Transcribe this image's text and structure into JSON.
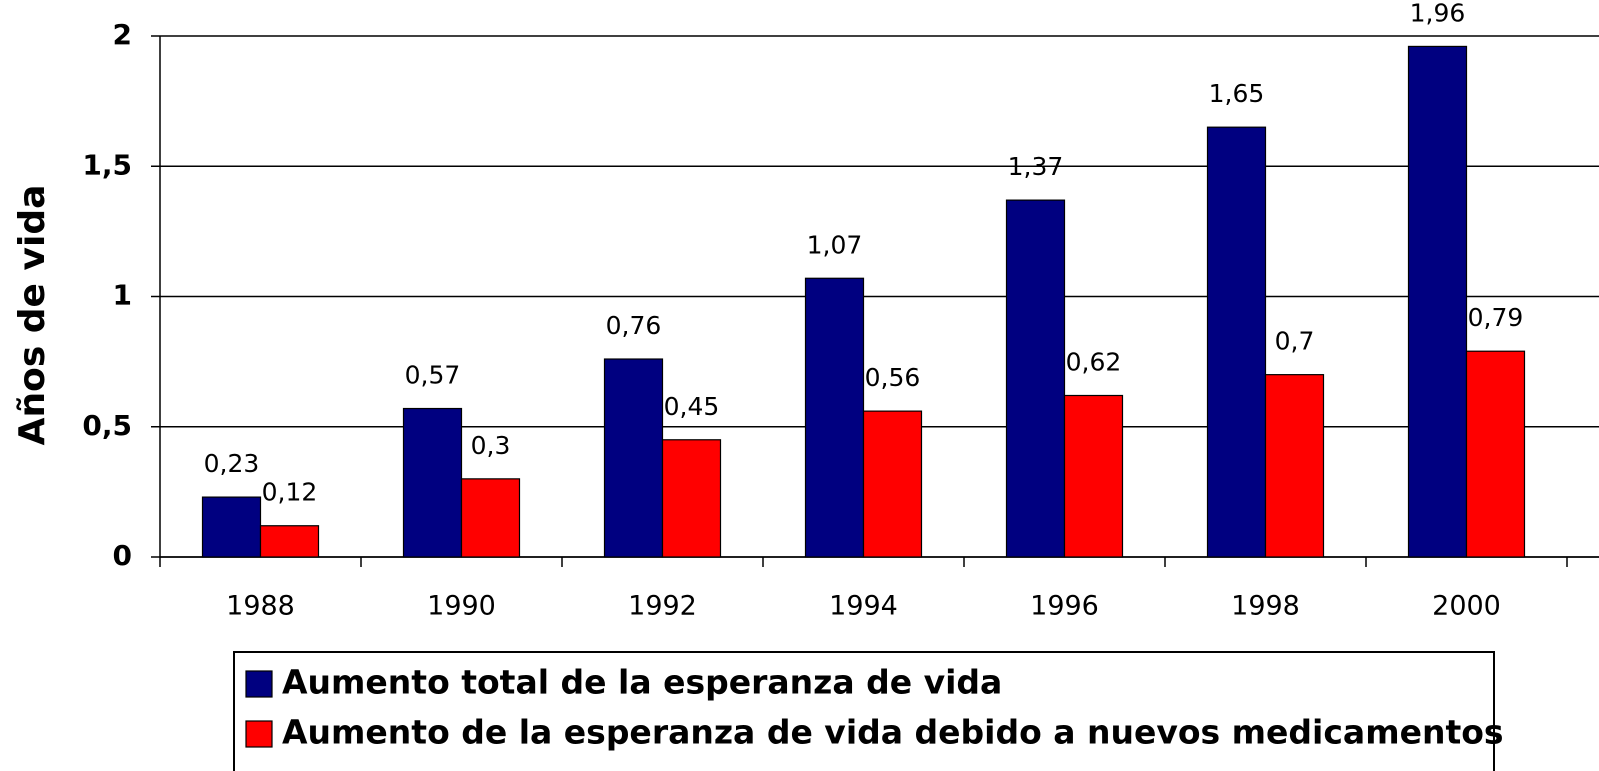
{
  "chart_data": {
    "type": "bar",
    "y_label": "Años de vida",
    "categories": [
      "1988",
      "1990",
      "1992",
      "1994",
      "1996",
      "1998",
      "2000"
    ],
    "series": [
      {
        "name": "Aumento total de la esperanza de vida",
        "color": "#000080",
        "values": [
          0.23,
          0.57,
          0.76,
          1.07,
          1.37,
          1.65,
          1.96
        ],
        "value_labels": [
          "0,23",
          "0,57",
          "0,76",
          "1,07",
          "1,37",
          "1,65",
          "1,96"
        ]
      },
      {
        "name": "Aumento de la esperanza de vida debido a nuevos medicamentos",
        "color": "#ff0000",
        "values": [
          0.12,
          0.3,
          0.45,
          0.56,
          0.62,
          0.7,
          0.79
        ],
        "value_labels": [
          "0,12",
          "0,3",
          "0,45",
          "0,56",
          "0,62",
          "0,7",
          "0,79"
        ]
      }
    ],
    "ylim": [
      0,
      2
    ],
    "yticks": [
      0,
      {
        "value": 0.5,
        "label": "0,5"
      },
      1,
      {
        "value": 1.5,
        "label": "1,5"
      },
      2
    ],
    "grid": true
  }
}
